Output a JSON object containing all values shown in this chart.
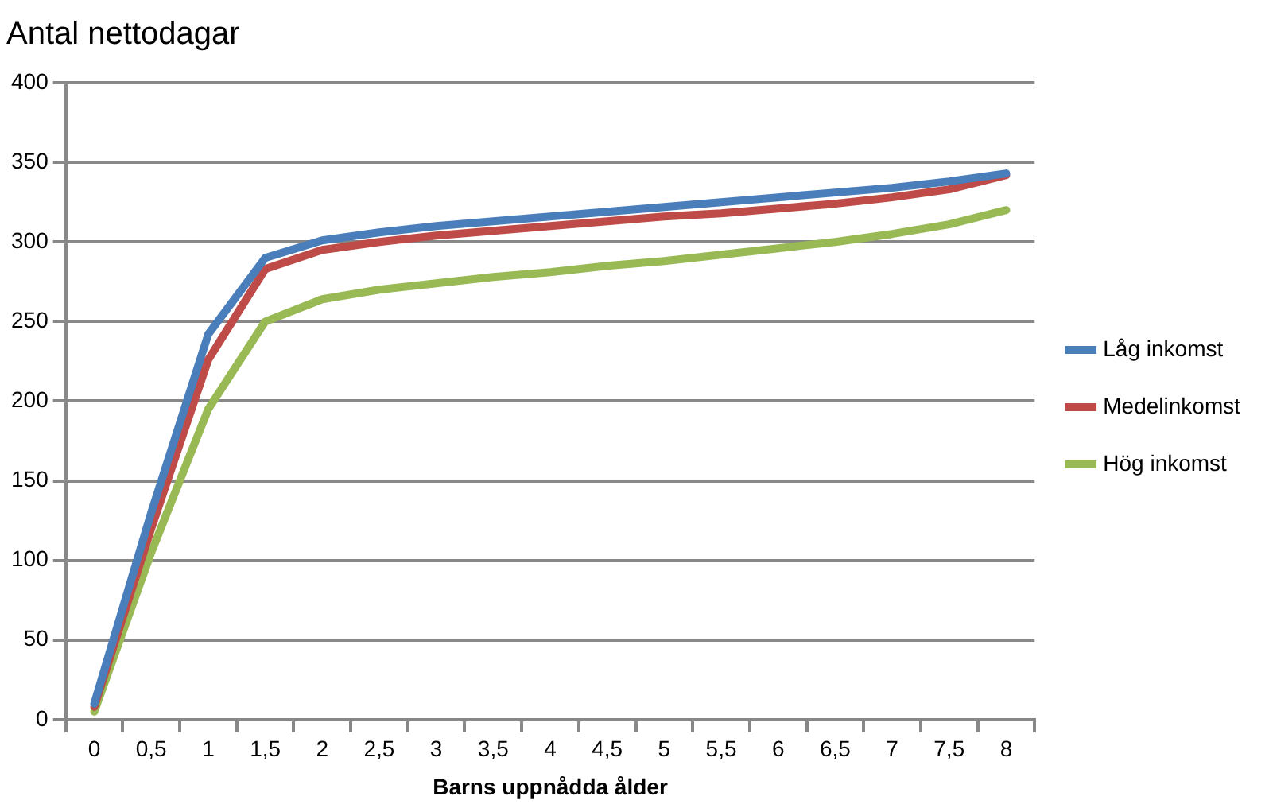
{
  "chart_data": {
    "type": "line",
    "title": "Antal nettodagar",
    "xlabel": "Barns uppnådda ålder",
    "categories": [
      "0",
      "0,5",
      "1",
      "1,5",
      "2",
      "2,5",
      "3",
      "3,5",
      "4",
      "4,5",
      "5",
      "5,5",
      "6",
      "6,5",
      "7",
      "7,5",
      "8"
    ],
    "series": [
      {
        "name": "Låg inkomst",
        "color": "#4a7ebb",
        "values": [
          10,
          130,
          242,
          290,
          301,
          306,
          310,
          313,
          316,
          319,
          322,
          325,
          328,
          331,
          334,
          338,
          343
        ]
      },
      {
        "name": "Medelinkomst",
        "color": "#be4b48",
        "values": [
          8,
          120,
          226,
          283,
          295,
          300,
          304,
          307,
          310,
          313,
          316,
          318,
          321,
          324,
          328,
          333,
          342
        ]
      },
      {
        "name": "Hög inkomst",
        "color": "#98b954",
        "values": [
          5,
          105,
          195,
          250,
          264,
          270,
          274,
          278,
          281,
          285,
          288,
          292,
          296,
          300,
          305,
          311,
          320
        ]
      }
    ],
    "ylim": [
      0,
      400
    ],
    "yticks": [
      0,
      50,
      100,
      150,
      200,
      250,
      300,
      350,
      400
    ],
    "grid": "y",
    "legend": "right",
    "marker": "none",
    "line_style": "solid"
  }
}
